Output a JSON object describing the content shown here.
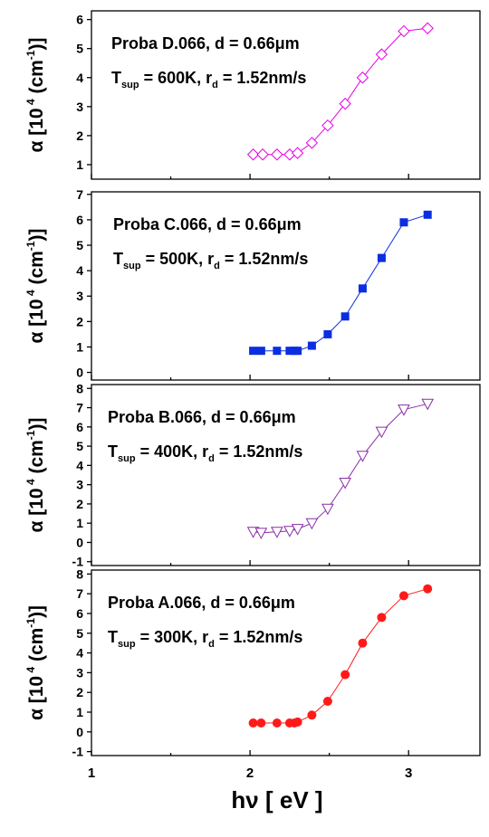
{
  "x_axis": {
    "label_main": "hν",
    "label_unit": "[ eV ]",
    "ticks": [
      "1",
      "2",
      "3"
    ]
  },
  "chart_data": [
    {
      "type": "line",
      "title_line1": "Proba D.066, d = 0.66μm",
      "annot": {
        "t": "T",
        "tsub": "sup",
        "tval": " = 600K, r",
        "rsub": "d",
        "rval": " = 1.52nm/s"
      },
      "ylabel": {
        "pre": "α [10",
        "sup1": " 4",
        "mid": " (cm",
        "sup2": "-1",
        "post": ")]"
      },
      "yticks": [
        "1",
        "2",
        "3",
        "4",
        "5",
        "6"
      ],
      "ylim": [
        0.5,
        6.3
      ],
      "xlim": [
        1,
        3.45
      ],
      "marker": "diamond-open",
      "color": "#e600e6",
      "x": [
        2.02,
        2.08,
        2.17,
        2.25,
        2.3,
        2.39,
        2.49,
        2.6,
        2.71,
        2.83,
        2.97,
        3.12
      ],
      "y": [
        1.35,
        1.35,
        1.35,
        1.35,
        1.4,
        1.75,
        2.35,
        3.1,
        4.0,
        4.8,
        5.6,
        5.7
      ]
    },
    {
      "type": "line",
      "title_line1": "Proba C.066, d = 0.66μm",
      "annot": {
        "t": "T",
        "tsub": "sup",
        "tval": " = 500K, r",
        "rsub": "d",
        "rval": " = 1.52nm/s"
      },
      "ylabel": {
        "pre": "α [10",
        "sup1": " 4",
        "mid": " (cm",
        "sup2": "-1",
        "post": ")]"
      },
      "yticks": [
        "0",
        "1",
        "2",
        "3",
        "4",
        "5",
        "6",
        "7"
      ],
      "ylim": [
        -0.3,
        7.1
      ],
      "xlim": [
        1,
        3.45
      ],
      "marker": "square-filled",
      "color": "#0a2ee0",
      "x": [
        2.02,
        2.07,
        2.17,
        2.25,
        2.28,
        2.3,
        2.39,
        2.49,
        2.6,
        2.71,
        2.83,
        2.97,
        3.12
      ],
      "y": [
        0.85,
        0.85,
        0.85,
        0.85,
        0.85,
        0.85,
        1.05,
        1.5,
        2.2,
        3.3,
        4.5,
        5.9,
        6.2
      ]
    },
    {
      "type": "line",
      "title_line1": "Proba B.066, d = 0.66μm",
      "annot": {
        "t": "T",
        "tsub": "sup",
        "tval": " = 400K, r",
        "rsub": "d",
        "rval": " = 1.52nm/s"
      },
      "ylabel": {
        "pre": "α [10",
        "sup1": " 4",
        "mid": " (cm",
        "sup2": "-1",
        "post": ")]"
      },
      "yticks": [
        "-1",
        "0",
        "1",
        "2",
        "3",
        "4",
        "5",
        "6",
        "7",
        "8"
      ],
      "ylim": [
        -1.2,
        8.2
      ],
      "xlim": [
        1,
        3.45
      ],
      "marker": "triangle-down-open",
      "color": "#8a2ea6",
      "x": [
        2.02,
        2.07,
        2.17,
        2.25,
        2.3,
        2.39,
        2.49,
        2.6,
        2.71,
        2.83,
        2.97,
        3.12
      ],
      "y": [
        0.55,
        0.5,
        0.55,
        0.6,
        0.7,
        1.0,
        1.75,
        3.1,
        4.5,
        5.75,
        6.9,
        7.2
      ]
    },
    {
      "type": "line",
      "title_line1": "Proba A.066, d = 0.66μm",
      "annot": {
        "t": "T",
        "tsub": "sup",
        "tval": " = 300K, r",
        "rsub": "d",
        "rval": " = 1.52nm/s"
      },
      "ylabel": {
        "pre": "α [10",
        "sup1": " 4",
        "mid": " (cm",
        "sup2": "-1",
        "post": ")]"
      },
      "yticks": [
        "-1",
        "0",
        "1",
        "2",
        "3",
        "4",
        "5",
        "6",
        "7",
        "8"
      ],
      "ylim": [
        -1.2,
        8.2
      ],
      "xlim": [
        1,
        3.45
      ],
      "marker": "circle-filled",
      "color": "#ff1a1a",
      "x": [
        2.02,
        2.07,
        2.17,
        2.25,
        2.28,
        2.3,
        2.39,
        2.49,
        2.6,
        2.71,
        2.83,
        2.97,
        3.12
      ],
      "y": [
        0.45,
        0.45,
        0.45,
        0.45,
        0.45,
        0.5,
        0.85,
        1.55,
        2.9,
        4.5,
        5.8,
        6.9,
        7.25
      ]
    }
  ]
}
